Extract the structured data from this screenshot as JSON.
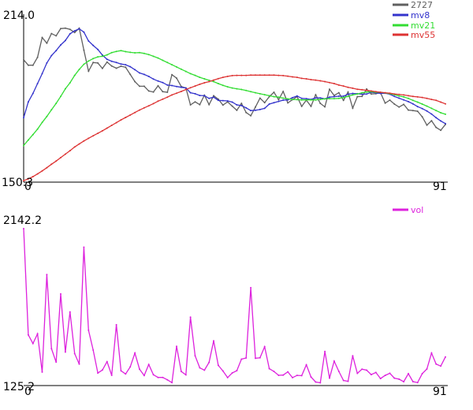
{
  "chart_data": [
    {
      "type": "line",
      "ylim": [
        150.3,
        214.0
      ],
      "ytick_top": "214.0",
      "ytick_bottom": "150.3",
      "xtick_left": "0",
      "xtick_right": "91",
      "x_range": [
        0,
        91
      ],
      "legend_placement": "top-right",
      "grid": false,
      "series": [
        {
          "name": "2727",
          "color": "#606060",
          "values": [
            199.4,
            197.2,
            197.2,
            200.4,
            208.4,
            206.1,
            210.0,
            209.1,
            212.0,
            212.2,
            211.7,
            210.4,
            212.2,
            203.3,
            194.8,
            198.3,
            198.1,
            195.9,
            198.5,
            196.9,
            196.0,
            196.8,
            196.4,
            193.5,
            190.6,
            188.7,
            188.7,
            186.8,
            186.4,
            188.9,
            186.5,
            186.3,
            193.4,
            192.0,
            188.6,
            188.0,
            181.2,
            182.4,
            181.3,
            185.1,
            181.3,
            184.9,
            183.5,
            181.1,
            182.4,
            180.7,
            179.0,
            181.8,
            178.1,
            176.8,
            180.3,
            183.9,
            182.1,
            184.5,
            186.3,
            183.3,
            186.6,
            182.0,
            183.3,
            184.5,
            180.6,
            183.1,
            180.6,
            185.3,
            181.8,
            180.4,
            187.5,
            185.0,
            186.1,
            183.0,
            186.4,
            179.9,
            184.5,
            184.6,
            187.6,
            185.6,
            185.7,
            186.1,
            181.9,
            183.1,
            181.5,
            180.3,
            181.4,
            179.1,
            178.9,
            178.6,
            176.4,
            173.0,
            174.8,
            172.1,
            170.9,
            173.3
          ]
        },
        {
          "name": "mv8",
          "color": "#3333cc",
          "values": [
            176.0,
            182.4,
            185.8,
            189.8,
            193.8,
            198.1,
            201.1,
            203.1,
            205.4,
            207.2,
            209.9,
            211.1,
            211.9,
            210.6,
            207.0,
            205.2,
            203.6,
            201.3,
            199.6,
            198.8,
            198.3,
            197.7,
            197.4,
            196.6,
            195.4,
            194.1,
            193.5,
            192.7,
            191.6,
            190.8,
            190.2,
            189.2,
            189.0,
            188.6,
            188.3,
            188.0,
            186.1,
            185.7,
            185.0,
            184.9,
            183.8,
            184.3,
            183.0,
            182.9,
            182.8,
            182.3,
            181.2,
            180.9,
            180.0,
            178.9,
            179.0,
            179.3,
            179.8,
            181.5,
            182.1,
            182.6,
            183.1,
            183.2,
            184.1,
            184.8,
            183.8,
            183.7,
            183.4,
            184.0,
            184.0,
            183.6,
            184.3,
            184.5,
            184.7,
            184.7,
            185.5,
            185.8,
            185.7,
            185.5,
            185.6,
            186.3,
            186.0,
            185.8,
            185.9,
            185.5,
            184.6,
            183.9,
            183.2,
            182.5,
            181.6,
            180.5,
            179.7,
            178.7,
            177.5,
            176.0,
            174.7,
            173.6
          ]
        },
        {
          "name": "mv21",
          "color": "#33dd33",
          "values": [
            164.8,
            167.0,
            169.2,
            171.4,
            174.1,
            176.5,
            179.2,
            181.8,
            184.6,
            187.7,
            190.1,
            193.1,
            195.5,
            197.6,
            198.9,
            199.9,
            200.6,
            200.8,
            201.4,
            202.3,
            202.8,
            203.1,
            202.7,
            202.4,
            202.2,
            202.3,
            202.0,
            201.5,
            200.8,
            200.1,
            199.2,
            198.3,
            197.4,
            196.5,
            195.6,
            194.7,
            193.8,
            193.1,
            192.3,
            191.7,
            191.1,
            190.6,
            189.8,
            189.1,
            188.5,
            188.0,
            187.7,
            187.4,
            187.0,
            186.5,
            186.1,
            185.7,
            185.3,
            184.9,
            184.5,
            184.3,
            183.9,
            183.6,
            183.4,
            183.3,
            183.2,
            183.2,
            183.2,
            183.2,
            183.4,
            183.6,
            183.7,
            183.7,
            183.8,
            184.2,
            184.6,
            185.2,
            185.6,
            186.1,
            186.4,
            186.5,
            186.3,
            186.3,
            186.0,
            185.7,
            185.3,
            184.8,
            184.4,
            183.8,
            183.0,
            182.3,
            181.5,
            180.7,
            179.8,
            178.9,
            178.0,
            177.4
          ]
        },
        {
          "name": "mv55",
          "color": "#dd3333",
          "values": [
            150.6,
            151.3,
            152.2,
            153.3,
            154.5,
            155.8,
            157.2,
            158.5,
            159.9,
            161.3,
            162.7,
            164.2,
            165.4,
            166.6,
            167.7,
            168.7,
            169.7,
            170.7,
            171.8,
            172.9,
            174.0,
            175.1,
            176.1,
            177.1,
            178.1,
            179.1,
            180.0,
            180.8,
            181.7,
            182.7,
            183.5,
            184.3,
            185.2,
            185.9,
            186.6,
            187.4,
            188.1,
            188.8,
            189.5,
            190.1,
            190.6,
            191.2,
            191.8,
            192.3,
            192.7,
            193.0,
            193.1,
            193.1,
            193.1,
            193.2,
            193.2,
            193.2,
            193.2,
            193.2,
            193.2,
            193.1,
            193.0,
            192.8,
            192.5,
            192.3,
            191.9,
            191.7,
            191.4,
            191.2,
            190.9,
            190.6,
            190.2,
            189.8,
            189.2,
            188.8,
            188.3,
            187.9,
            187.5,
            187.3,
            187.1,
            186.8,
            186.5,
            186.3,
            186.1,
            185.9,
            185.6,
            185.4,
            185.2,
            184.9,
            184.6,
            184.4,
            184.2,
            183.8,
            183.4,
            183.0,
            182.3,
            181.6
          ]
        }
      ]
    },
    {
      "type": "line",
      "ylim": [
        125.2,
        2142.2
      ],
      "ytick_top": "2142.2",
      "ytick_bottom": "125.2",
      "xtick_left": "0",
      "xtick_right": "91",
      "x_range": [
        0,
        91
      ],
      "legend_placement": "top-right",
      "grid": false,
      "series": [
        {
          "name": "vol",
          "color": "#dd22dd",
          "values": [
            2142.2,
            776.8,
            665.9,
            789.7,
            299.0,
            1551.4,
            599.9,
            425.9,
            1304.1,
            555.6,
            1072.1,
            536.1,
            402.4,
            1904.0,
            835.7,
            581.1,
            286.5,
            325.0,
            432.6,
            257.3,
            906.3,
            314.9,
            273.8,
            365.4,
            542.7,
            336.5,
            253.9,
            396.2,
            264.1,
            230.0,
            229.8,
            199.1,
            162.2,
            628.6,
            306.8,
            263.4,
            1005.3,
            508.6,
            353.4,
            322.7,
            422.8,
            700.7,
            385.0,
            312.7,
            227.6,
            287.4,
            316.9,
            464.6,
            480.2,
            1383.3,
            475.4,
            481.7,
            624.3,
            342.2,
            307.1,
            257.2,
            259.9,
            301.3,
            227.6,
            256.2,
            252.6,
            391.6,
            236.0,
            170.4,
            160.3,
            563.0,
            220.0,
            439.6,
            307.4,
            191.5,
            180.3,
            507.7,
            282.5,
            336.1,
            322.7,
            265.7,
            293.8,
            215.8,
            255.5,
            283.3,
            220.3,
            207.3,
            174.5,
            278.1,
            176.2,
            163.5,
            277.9,
            337.7,
            543.0,
            401.4,
            375.1,
            493.3
          ]
        }
      ]
    }
  ]
}
